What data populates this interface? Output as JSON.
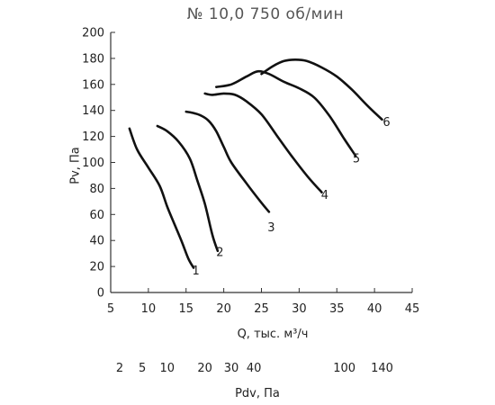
{
  "title": "№ 10,0  750 об/мин",
  "chart_data": {
    "type": "line",
    "title": "№ 10,0  750 об/мин",
    "xlabel": "Q, тыс. м³/ч",
    "ylabel": "Pv, Па",
    "xlim": [
      5,
      45
    ],
    "ylim": [
      0,
      200
    ],
    "x_ticks": [
      5,
      10,
      15,
      20,
      25,
      30,
      35,
      40,
      45
    ],
    "y_ticks": [
      0,
      20,
      40,
      60,
      80,
      100,
      120,
      140,
      160,
      180,
      200
    ],
    "grid": false,
    "secondary_axis": {
      "label": "Pdv, Па",
      "ticks": [
        "2",
        "5",
        "10",
        "20",
        "30",
        "40",
        "100",
        "140"
      ],
      "tick_q": [
        6.2,
        9.2,
        12.5,
        17.5,
        21,
        24,
        36,
        41
      ]
    },
    "series": [
      {
        "name": "1",
        "x": [
          7.5,
          8.5,
          10,
          11.5,
          12.5,
          13.5,
          14.5,
          15.3,
          16
        ],
        "y": [
          126,
          110,
          96,
          82,
          66,
          52,
          38,
          26,
          19
        ]
      },
      {
        "name": "2",
        "x": [
          11.2,
          12.5,
          14,
          15.5,
          16.5,
          17.5,
          18.5,
          19.2
        ],
        "y": [
          128,
          124,
          116,
          103,
          86,
          68,
          44,
          32
        ]
      },
      {
        "name": "3",
        "x": [
          15,
          16,
          17,
          18,
          19,
          20,
          21,
          23,
          25,
          26
        ],
        "y": [
          139,
          138,
          136,
          132,
          124,
          112,
          100,
          84,
          69,
          62
        ]
      },
      {
        "name": "4",
        "x": [
          17.5,
          18.5,
          20,
          21.5,
          23,
          25,
          27,
          29,
          31,
          33
        ],
        "y": [
          153,
          152,
          153,
          152,
          147,
          137,
          121,
          105,
          90,
          77
        ]
      },
      {
        "name": "5",
        "x": [
          19,
          21,
          23,
          24.5,
          26,
          28,
          30,
          32,
          34,
          36,
          37.5
        ],
        "y": [
          158,
          160,
          166,
          170,
          168,
          162,
          157,
          150,
          136,
          118,
          105
        ]
      },
      {
        "name": "6",
        "x": [
          25,
          26.5,
          28,
          29.5,
          31,
          33,
          35,
          37,
          39,
          41
        ],
        "y": [
          168,
          174,
          178,
          179,
          178,
          173,
          166,
          156,
          144,
          133
        ]
      }
    ],
    "curve_labels": [
      "1",
      "2",
      "3",
      "4",
      "5",
      "6"
    ],
    "curve_label_positions": [
      {
        "x": 16.3,
        "y": 14
      },
      {
        "x": 19.5,
        "y": 28
      },
      {
        "x": 26.3,
        "y": 47
      },
      {
        "x": 33.4,
        "y": 72
      },
      {
        "x": 37.6,
        "y": 100
      },
      {
        "x": 41.6,
        "y": 128
      }
    ]
  }
}
